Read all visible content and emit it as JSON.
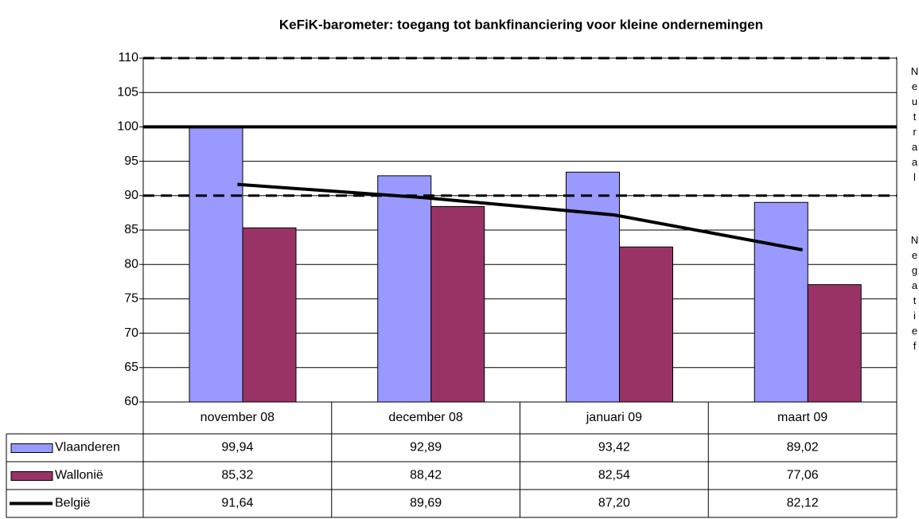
{
  "chart_data": {
    "type": "bar",
    "title": "KeFiK-barometer: toegang tot bankfinanciering voor kleine ondernemingen",
    "categories": [
      "november 08",
      "december 08",
      "januari 09",
      "maart 09"
    ],
    "series": [
      {
        "name": "Vlaanderen",
        "type": "bar",
        "color": "#9999ff",
        "values": [
          99.94,
          92.89,
          93.42,
          89.02
        ],
        "value_labels": [
          "99,94",
          "92,89",
          "93,42",
          "89,02"
        ]
      },
      {
        "name": "Wallonië",
        "type": "bar",
        "color": "#993366",
        "values": [
          85.32,
          88.42,
          82.54,
          77.06
        ],
        "value_labels": [
          "85,32",
          "88,42",
          "82,54",
          "77,06"
        ]
      },
      {
        "name": "België",
        "type": "line",
        "color": "#000000",
        "values": [
          91.64,
          89.69,
          87.2,
          82.12
        ],
        "value_labels": [
          "91,64",
          "89,69",
          "87,20",
          "82,12"
        ]
      }
    ],
    "ylim": [
      60,
      110
    ],
    "yticks": [
      60,
      65,
      70,
      75,
      80,
      85,
      90,
      95,
      100,
      105,
      110
    ],
    "grid": true,
    "reference_lines": [
      {
        "value": 110,
        "style": "dashed"
      },
      {
        "value": 100,
        "style": "solid"
      },
      {
        "value": 90,
        "style": "dashed"
      }
    ],
    "annotations": [
      "Neutraal",
      "Negatief"
    ]
  }
}
